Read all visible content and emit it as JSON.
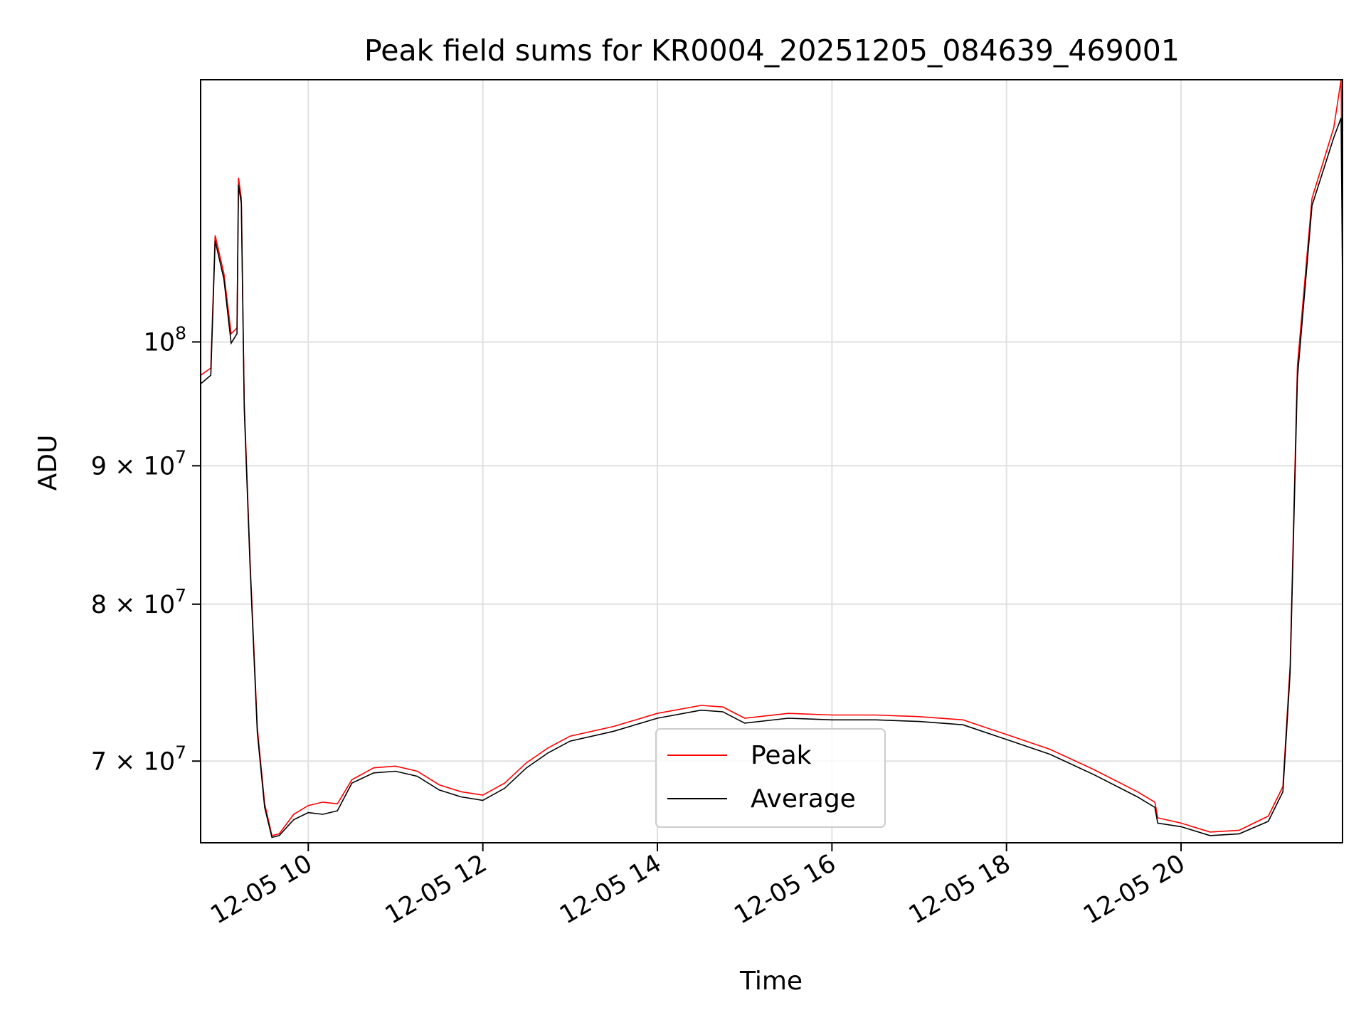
{
  "chart_data": {
    "type": "line",
    "title": "Peak field sums for KR0004_20251205_084639_469001",
    "xlabel": "Time",
    "ylabel": "ADU",
    "yscale": "log",
    "xlim": [
      "2025-12-05 08:46",
      "2025-12-05 21:51"
    ],
    "ylim": [
      65300000,
      125000000
    ],
    "grid": true,
    "legend_position": "lower center",
    "x_ticks": [
      {
        "value": "2025-12-05 10:00",
        "label": "12-05 10"
      },
      {
        "value": "2025-12-05 12:00",
        "label": "12-05 12"
      },
      {
        "value": "2025-12-05 14:00",
        "label": "12-05 14"
      },
      {
        "value": "2025-12-05 16:00",
        "label": "12-05 16"
      },
      {
        "value": "2025-12-05 18:00",
        "label": "12-05 18"
      },
      {
        "value": "2025-12-05 20:00",
        "label": "12-05 20"
      }
    ],
    "y_ticks": [
      {
        "value": 70000000,
        "label": "7 × 10",
        "exp": "7"
      },
      {
        "value": 80000000,
        "label": "8 × 10",
        "exp": "7"
      },
      {
        "value": 90000000,
        "label": "9 × 10",
        "exp": "7"
      },
      {
        "value": 100000000,
        "label": "10",
        "exp": "8"
      }
    ],
    "series": [
      {
        "name": "Peak",
        "color": "#ff0000",
        "points": [
          [
            "2025-12-05 08:46",
            97200000
          ],
          [
            "2025-12-05 08:53",
            97800000
          ],
          [
            "2025-12-05 08:56",
            109500000
          ],
          [
            "2025-12-05 09:02",
            106000000
          ],
          [
            "2025-12-05 09:07",
            100700000
          ],
          [
            "2025-12-05 09:11",
            101200000
          ],
          [
            "2025-12-05 09:12",
            115000000
          ],
          [
            "2025-12-05 09:14",
            113000000
          ],
          [
            "2025-12-05 09:16",
            95000000
          ],
          [
            "2025-12-05 09:20",
            83000000
          ],
          [
            "2025-12-05 09:25",
            72000000
          ],
          [
            "2025-12-05 09:30",
            67500000
          ],
          [
            "2025-12-05 09:35",
            65700000
          ],
          [
            "2025-12-05 09:40",
            65800000
          ],
          [
            "2025-12-05 09:50",
            66900000
          ],
          [
            "2025-12-05 10:00",
            67400000
          ],
          [
            "2025-12-05 10:10",
            67600000
          ],
          [
            "2025-12-05 10:20",
            67500000
          ],
          [
            "2025-12-05 10:30",
            68900000
          ],
          [
            "2025-12-05 10:45",
            69600000
          ],
          [
            "2025-12-05 11:00",
            69700000
          ],
          [
            "2025-12-05 11:15",
            69400000
          ],
          [
            "2025-12-05 11:30",
            68600000
          ],
          [
            "2025-12-05 11:45",
            68200000
          ],
          [
            "2025-12-05 12:00",
            68000000
          ],
          [
            "2025-12-05 12:15",
            68700000
          ],
          [
            "2025-12-05 12:30",
            69900000
          ],
          [
            "2025-12-05 12:45",
            70800000
          ],
          [
            "2025-12-05 13:00",
            71500000
          ],
          [
            "2025-12-05 13:30",
            72100000
          ],
          [
            "2025-12-05 14:00",
            72900000
          ],
          [
            "2025-12-05 14:30",
            73400000
          ],
          [
            "2025-12-05 14:45",
            73300000
          ],
          [
            "2025-12-05 15:00",
            72600000
          ],
          [
            "2025-12-05 15:30",
            72900000
          ],
          [
            "2025-12-05 16:00",
            72800000
          ],
          [
            "2025-12-05 16:30",
            72800000
          ],
          [
            "2025-12-05 17:00",
            72700000
          ],
          [
            "2025-12-05 17:30",
            72500000
          ],
          [
            "2025-12-05 18:00",
            71600000
          ],
          [
            "2025-12-05 18:30",
            70700000
          ],
          [
            "2025-12-05 19:00",
            69500000
          ],
          [
            "2025-12-05 19:30",
            68200000
          ],
          [
            "2025-12-05 19:42",
            67600000
          ],
          [
            "2025-12-05 19:44",
            66700000
          ],
          [
            "2025-12-05 20:00",
            66400000
          ],
          [
            "2025-12-05 20:20",
            65900000
          ],
          [
            "2025-12-05 20:40",
            66000000
          ],
          [
            "2025-12-05 21:00",
            66800000
          ],
          [
            "2025-12-05 21:10",
            68500000
          ],
          [
            "2025-12-05 21:15",
            76000000
          ],
          [
            "2025-12-05 21:20",
            98000000
          ],
          [
            "2025-12-05 21:30",
            113000000
          ],
          [
            "2025-12-05 21:45",
            120000000
          ],
          [
            "2025-12-05 21:50",
            125000000
          ],
          [
            "2025-12-05 21:51",
            108300000
          ]
        ]
      },
      {
        "name": "Average",
        "color": "#000000",
        "points": [
          [
            "2025-12-05 08:46",
            96500000
          ],
          [
            "2025-12-05 08:53",
            97200000
          ],
          [
            "2025-12-05 08:56",
            109000000
          ],
          [
            "2025-12-05 09:02",
            105500000
          ],
          [
            "2025-12-05 09:07",
            99900000
          ],
          [
            "2025-12-05 09:11",
            100700000
          ],
          [
            "2025-12-05 09:12",
            114300000
          ],
          [
            "2025-12-05 09:14",
            112500000
          ],
          [
            "2025-12-05 09:16",
            94500000
          ],
          [
            "2025-12-05 09:20",
            82600000
          ],
          [
            "2025-12-05 09:25",
            71700000
          ],
          [
            "2025-12-05 09:30",
            67300000
          ],
          [
            "2025-12-05 09:35",
            65600000
          ],
          [
            "2025-12-05 09:40",
            65700000
          ],
          [
            "2025-12-05 09:50",
            66600000
          ],
          [
            "2025-12-05 10:00",
            67000000
          ],
          [
            "2025-12-05 10:10",
            66900000
          ],
          [
            "2025-12-05 10:20",
            67100000
          ],
          [
            "2025-12-05 10:30",
            68700000
          ],
          [
            "2025-12-05 10:45",
            69300000
          ],
          [
            "2025-12-05 11:00",
            69400000
          ],
          [
            "2025-12-05 11:15",
            69100000
          ],
          [
            "2025-12-05 11:30",
            68300000
          ],
          [
            "2025-12-05 11:45",
            67900000
          ],
          [
            "2025-12-05 12:00",
            67700000
          ],
          [
            "2025-12-05 12:15",
            68400000
          ],
          [
            "2025-12-05 12:30",
            69600000
          ],
          [
            "2025-12-05 12:45",
            70500000
          ],
          [
            "2025-12-05 13:00",
            71200000
          ],
          [
            "2025-12-05 13:30",
            71800000
          ],
          [
            "2025-12-05 14:00",
            72600000
          ],
          [
            "2025-12-05 14:30",
            73100000
          ],
          [
            "2025-12-05 14:45",
            73000000
          ],
          [
            "2025-12-05 15:00",
            72300000
          ],
          [
            "2025-12-05 15:30",
            72600000
          ],
          [
            "2025-12-05 16:00",
            72500000
          ],
          [
            "2025-12-05 16:30",
            72500000
          ],
          [
            "2025-12-05 17:00",
            72400000
          ],
          [
            "2025-12-05 17:30",
            72200000
          ],
          [
            "2025-12-05 18:00",
            71300000
          ],
          [
            "2025-12-05 18:30",
            70400000
          ],
          [
            "2025-12-05 19:00",
            69200000
          ],
          [
            "2025-12-05 19:30",
            67900000
          ],
          [
            "2025-12-05 19:42",
            67300000
          ],
          [
            "2025-12-05 19:44",
            66400000
          ],
          [
            "2025-12-05 20:00",
            66200000
          ],
          [
            "2025-12-05 20:20",
            65700000
          ],
          [
            "2025-12-05 20:40",
            65800000
          ],
          [
            "2025-12-05 21:00",
            66500000
          ],
          [
            "2025-12-05 21:10",
            68200000
          ],
          [
            "2025-12-05 21:15",
            75500000
          ],
          [
            "2025-12-05 21:20",
            97000000
          ],
          [
            "2025-12-05 21:30",
            112300000
          ],
          [
            "2025-12-05 21:45",
            119000000
          ],
          [
            "2025-12-05 21:50",
            121000000
          ],
          [
            "2025-12-05 21:51",
            105000000
          ]
        ]
      }
    ]
  }
}
